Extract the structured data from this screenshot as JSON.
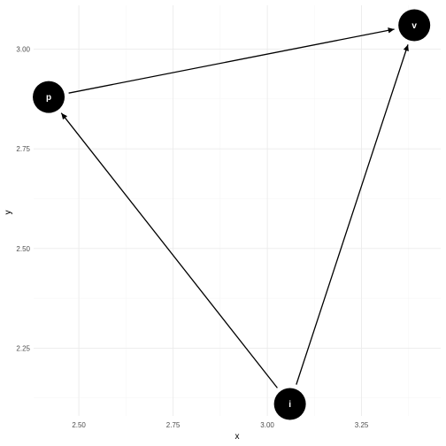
{
  "chart_data": {
    "type": "network",
    "xlabel": "x",
    "ylabel": "y",
    "xlim": [
      2.38,
      3.46
    ],
    "ylim": [
      2.08,
      3.11
    ],
    "x_ticks": [
      2.5,
      2.75,
      3.0,
      3.25
    ],
    "x_tick_labels": [
      "2.50",
      "2.75",
      "3.00",
      "3.25"
    ],
    "y_ticks": [
      2.25,
      2.5,
      2.75,
      3.0
    ],
    "y_tick_labels": [
      "2.25",
      "2.50",
      "2.75",
      "3.00"
    ],
    "grid": true,
    "nodes": [
      {
        "id": "p",
        "label": "p",
        "x": 2.42,
        "y": 2.88
      },
      {
        "id": "v",
        "label": "v",
        "x": 3.39,
        "y": 3.06
      },
      {
        "id": "i",
        "label": "i",
        "x": 3.06,
        "y": 2.11
      }
    ],
    "edges": [
      {
        "from": "p",
        "to": "v"
      },
      {
        "from": "i",
        "to": "p"
      },
      {
        "from": "i",
        "to": "v"
      }
    ],
    "colors": {
      "node": "#000000",
      "node_label": "#ffffff",
      "edge": "#000000"
    }
  }
}
